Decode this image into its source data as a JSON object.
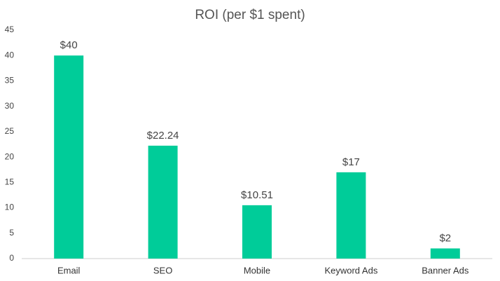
{
  "chart_data": {
    "type": "bar",
    "title": "ROI (per $1 spent)",
    "categories": [
      "Email",
      "SEO",
      "Mobile",
      "Keyword Ads",
      "Banner Ads"
    ],
    "values": [
      40,
      22.24,
      10.51,
      17,
      2
    ],
    "value_labels": [
      "$40",
      "$22.24",
      "$10.51",
      "$17",
      "$2"
    ],
    "color": "#00cc99",
    "ylim": [
      0,
      45
    ],
    "yticks": [
      0,
      5,
      10,
      15,
      20,
      25,
      30,
      35,
      40,
      45
    ],
    "grid": false
  }
}
